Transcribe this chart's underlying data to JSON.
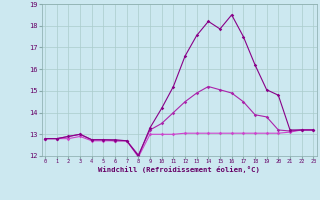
{
  "xlabel": "Windchill (Refroidissement éolien,°C)",
  "background_color": "#cce8f0",
  "grid_color": "#aacccc",
  "line_color1": "#880088",
  "line_color2": "#aa22aa",
  "line_color3": "#cc44cc",
  "xmin": 0,
  "xmax": 23,
  "ymin": 12,
  "ymax": 19,
  "hours": [
    0,
    1,
    2,
    3,
    4,
    5,
    6,
    7,
    8,
    9,
    10,
    11,
    12,
    13,
    14,
    15,
    16,
    17,
    18,
    19,
    20,
    21,
    22,
    23
  ],
  "line1": [
    12.8,
    12.8,
    12.8,
    12.9,
    12.7,
    12.7,
    12.7,
    12.7,
    11.95,
    13.0,
    13.0,
    13.0,
    13.05,
    13.05,
    13.05,
    13.05,
    13.05,
    13.05,
    13.05,
    13.05,
    13.05,
    13.1,
    13.2,
    13.2
  ],
  "line2": [
    12.8,
    12.8,
    12.9,
    13.0,
    12.75,
    12.75,
    12.7,
    12.7,
    12.05,
    13.2,
    13.5,
    14.0,
    14.5,
    14.9,
    15.2,
    15.05,
    14.9,
    14.5,
    13.9,
    13.8,
    13.2,
    13.15,
    13.2,
    13.2
  ],
  "line3": [
    12.8,
    12.8,
    12.9,
    13.0,
    12.75,
    12.75,
    12.75,
    12.7,
    12.0,
    13.3,
    14.2,
    15.2,
    16.6,
    17.55,
    18.2,
    17.85,
    18.5,
    17.5,
    16.2,
    15.05,
    14.8,
    13.2,
    13.2,
    13.2
  ]
}
